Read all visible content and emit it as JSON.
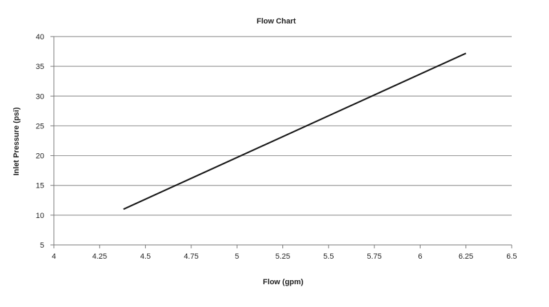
{
  "chart_data": {
    "type": "line",
    "title": "Flow Chart",
    "xlabel": "Flow (gpm)",
    "ylabel": "Inlet Pressure (psi)",
    "xlim": [
      4,
      6.5
    ],
    "ylim": [
      5,
      40
    ],
    "x_ticks": [
      "4",
      "4.25",
      "4.5",
      "4.75",
      "5",
      "5.25",
      "5.5",
      "5.75",
      "6",
      "6.25",
      "6.5"
    ],
    "y_ticks": [
      "5",
      "10",
      "15",
      "20",
      "25",
      "30",
      "35",
      "40"
    ],
    "grid": "horizontal",
    "legend": "none",
    "series": [
      {
        "x": [
          4.38,
          6.25
        ],
        "y": [
          11,
          37.2
        ]
      }
    ],
    "colors": {
      "line": "#1a1a1a",
      "grid": "#9a9a9a",
      "axis": "#777777"
    }
  }
}
